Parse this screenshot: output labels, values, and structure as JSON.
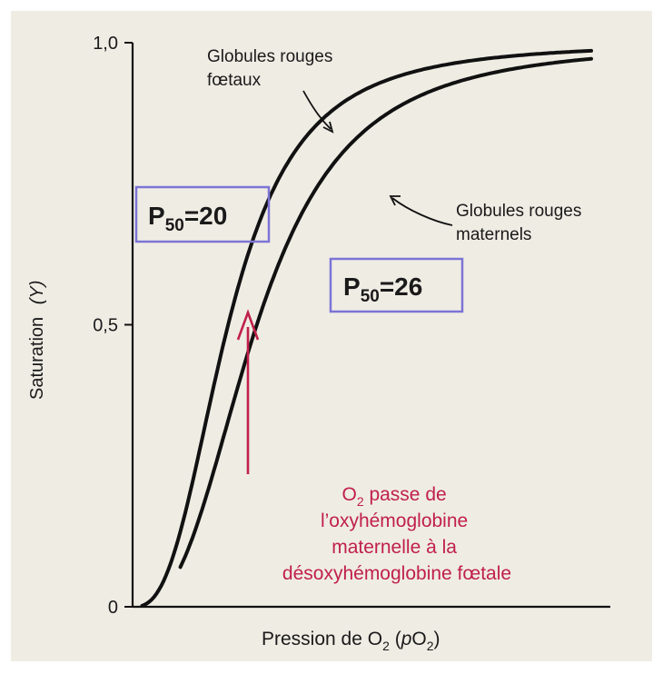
{
  "chart_data": {
    "type": "line",
    "title": "",
    "xlabel": {
      "prefix": "Pression de O",
      "sub": "2",
      "middle": " (",
      "italic": "p",
      "tail": "O",
      "sub2": "2",
      "end": ")"
    },
    "ylabel": {
      "text": "Saturation",
      "var": "(Y)"
    },
    "ylim": [
      0,
      1
    ],
    "xlim": [
      0,
      100
    ],
    "yticks": [
      {
        "value": 0,
        "label": "0"
      },
      {
        "value": 0.5,
        "label": "0,5"
      },
      {
        "value": 1.0,
        "label": "1,0"
      }
    ],
    "grid": false,
    "series": [
      {
        "name": "Globules rouges fœtaux",
        "name_lines": [
          "Globules rouges",
          "fœtaux"
        ],
        "p50": 20,
        "p50_label": {
          "prefix": "P",
          "sub": "50",
          "value": "=20"
        },
        "color": "#111111"
      },
      {
        "name": "Globules rouges maternels",
        "name_lines": [
          "Globules rouges",
          "maternels"
        ],
        "p50": 26,
        "p50_label": {
          "prefix": "P",
          "sub": "50",
          "value": "=26"
        },
        "color": "#111111"
      }
    ],
    "annotation": {
      "lines": [
        {
          "prefix": "O",
          "sub": "2",
          "rest": " passe de"
        },
        {
          "text": "l’oxyhémoglobine"
        },
        {
          "text": "maternelle à la"
        },
        {
          "text": "désoxyhémoglobine fœtale"
        }
      ],
      "color": "#c0204a"
    },
    "box_color": "#7c74d6"
  }
}
